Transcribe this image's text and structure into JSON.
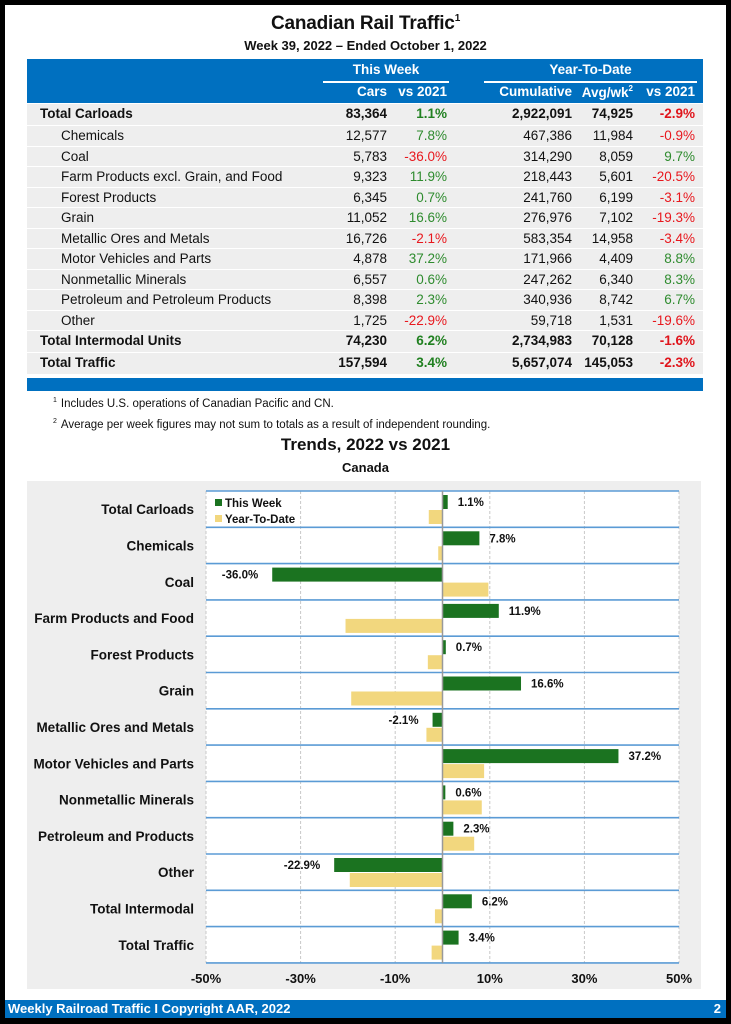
{
  "header": {
    "title": "Canadian Rail Traffic",
    "title_footnote": "1",
    "subtitle": "Week 39, 2022 – Ended October 1, 2022"
  },
  "table": {
    "groups": {
      "this_week": "This Week",
      "ytd": "Year-To-Date"
    },
    "columns": {
      "cars": "Cars",
      "vs_week": "vs 2021",
      "cumulative": "Cumulative",
      "avg": "Avg/wk",
      "avg_footnote": "2",
      "vs_ytd": "vs 2021"
    },
    "rows": [
      {
        "label": "Total Carloads",
        "cars": "83,364",
        "vs_week": "1.1%",
        "cumulative": "2,922,091",
        "avg": "74,925",
        "vs_ytd": "-2.9%",
        "bold": true
      },
      {
        "label": "Chemicals",
        "cars": "12,577",
        "vs_week": "7.8%",
        "cumulative": "467,386",
        "avg": "11,984",
        "vs_ytd": "-0.9%"
      },
      {
        "label": "Coal",
        "cars": "5,783",
        "vs_week": "-36.0%",
        "cumulative": "314,290",
        "avg": "8,059",
        "vs_ytd": "9.7%"
      },
      {
        "label": "Farm Products excl. Grain, and Food",
        "cars": "9,323",
        "vs_week": "11.9%",
        "cumulative": "218,443",
        "avg": "5,601",
        "vs_ytd": "-20.5%"
      },
      {
        "label": "Forest Products",
        "cars": "6,345",
        "vs_week": "0.7%",
        "cumulative": "241,760",
        "avg": "6,199",
        "vs_ytd": "-3.1%"
      },
      {
        "label": "Grain",
        "cars": "11,052",
        "vs_week": "16.6%",
        "cumulative": "276,976",
        "avg": "7,102",
        "vs_ytd": "-19.3%"
      },
      {
        "label": "Metallic Ores and Metals",
        "cars": "16,726",
        "vs_week": "-2.1%",
        "cumulative": "583,354",
        "avg": "14,958",
        "vs_ytd": "-3.4%"
      },
      {
        "label": "Motor Vehicles and Parts",
        "cars": "4,878",
        "vs_week": "37.2%",
        "cumulative": "171,966",
        "avg": "4,409",
        "vs_ytd": "8.8%"
      },
      {
        "label": "Nonmetallic Minerals",
        "cars": "6,557",
        "vs_week": "0.6%",
        "cumulative": "247,262",
        "avg": "6,340",
        "vs_ytd": "8.3%"
      },
      {
        "label": "Petroleum and Petroleum Products",
        "cars": "8,398",
        "vs_week": "2.3%",
        "cumulative": "340,936",
        "avg": "8,742",
        "vs_ytd": "6.7%"
      },
      {
        "label": "Other",
        "cars": "1,725",
        "vs_week": "-22.9%",
        "cumulative": "59,718",
        "avg": "1,531",
        "vs_ytd": "-19.6%"
      },
      {
        "label": "Total Intermodal Units",
        "cars": "74,230",
        "vs_week": "6.2%",
        "cumulative": "2,734,983",
        "avg": "70,128",
        "vs_ytd": "-1.6%",
        "bold": true
      },
      {
        "label": "Total Traffic",
        "cars": "157,594",
        "vs_week": "3.4%",
        "cumulative": "5,657,074",
        "avg": "145,053",
        "vs_ytd": "-2.3%",
        "bold": true
      }
    ]
  },
  "notes": [
    {
      "mark": "1",
      "text": "Includes U.S. operations of Canadian Pacific and CN."
    },
    {
      "mark": "2",
      "text": "Average per week figures may not sum to totals as a result of independent rounding."
    }
  ],
  "colors": {
    "brand_blue": "#0070c0",
    "positive": "#2e8b2e",
    "negative": "#e8171d",
    "this_week_bar": "#1b7320",
    "ytd_bar": "#f2d77e",
    "row_bg": "#eeeeee"
  },
  "chart_data": {
    "type": "bar",
    "orientation": "horizontal",
    "title": "Trends, 2022 vs 2021",
    "subtitle": "Canada",
    "categories": [
      "Total Carloads",
      "Chemicals",
      "Coal",
      "Farm Products and Food",
      "Forest Products",
      "Grain",
      "Metallic Ores and Metals",
      "Motor Vehicles and Parts",
      "Nonmetallic Minerals",
      "Petroleum and Products",
      "Other",
      "Total Intermodal",
      "Total Traffic"
    ],
    "series": [
      {
        "name": "This Week",
        "values": [
          1.1,
          7.8,
          -36.0,
          11.9,
          0.7,
          16.6,
          -2.1,
          37.2,
          0.6,
          2.3,
          -22.9,
          6.2,
          3.4
        ],
        "labels": [
          "1.1%",
          "7.8%",
          "-36.0%",
          "11.9%",
          "0.7%",
          "16.6%",
          "-2.1%",
          "37.2%",
          "0.6%",
          "2.3%",
          "-22.9%",
          "6.2%",
          "3.4%"
        ]
      },
      {
        "name": "Year-To-Date",
        "values": [
          -2.9,
          -0.9,
          9.7,
          -20.5,
          -3.1,
          -19.3,
          -3.4,
          8.8,
          8.3,
          6.7,
          -19.6,
          -1.6,
          -2.3
        ]
      }
    ],
    "xlim": [
      -50,
      50
    ],
    "xticks": [
      -50,
      -30,
      -10,
      10,
      30,
      50
    ],
    "xtick_labels": [
      "-50%",
      "-30%",
      "-10%",
      "10%",
      "30%",
      "50%"
    ],
    "grid": true,
    "legend": "top-left"
  },
  "footer": {
    "left": "Weekly Railroad Traffic I Copyright AAR, 2022",
    "page": "2"
  }
}
